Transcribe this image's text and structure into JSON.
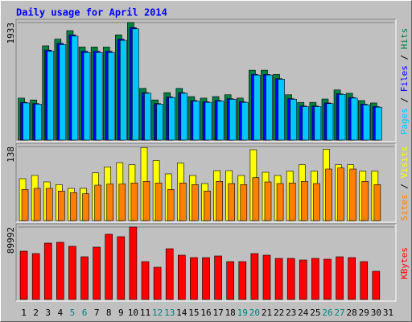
{
  "title": "Daily usage for April 2014",
  "chart_data": [
    {
      "type": "bar",
      "ylim": [
        0,
        1933
      ],
      "yticks": [
        1933
      ],
      "legend_separator": " / ",
      "series": [
        {
          "name": "Hits",
          "color": "#008040",
          "values": [
            690,
            660,
            1550,
            1660,
            1800,
            1530,
            1530,
            1530,
            1730,
            1933,
            850,
            660,
            780,
            850,
            715,
            690,
            715,
            745,
            690,
            1150,
            1150,
            1080,
            745,
            620,
            620,
            675,
            825,
            770,
            650,
            610,
            null
          ]
        },
        {
          "name": "Files",
          "color": "#0000ff",
          "values": [
            620,
            600,
            1480,
            1590,
            1730,
            1460,
            1460,
            1460,
            1660,
            1850,
            780,
            600,
            710,
            780,
            650,
            630,
            650,
            680,
            630,
            1080,
            1080,
            1010,
            680,
            560,
            560,
            610,
            760,
            700,
            590,
            550,
            null
          ]
        },
        {
          "name": "Pages",
          "color": "#00c8ff",
          "values": [
            610,
            590,
            1460,
            1570,
            1710,
            1440,
            1440,
            1440,
            1640,
            1830,
            770,
            590,
            700,
            770,
            640,
            620,
            640,
            670,
            620,
            1070,
            1070,
            1000,
            670,
            550,
            550,
            600,
            750,
            690,
            580,
            540,
            null
          ]
        }
      ]
    },
    {
      "type": "bar",
      "ylim": [
        0,
        138
      ],
      "yticks": [
        138
      ],
      "legend_separator": " / ",
      "series": [
        {
          "name": "Visits",
          "color": "#ffff00",
          "values": [
            78,
            84,
            72,
            67,
            60,
            60,
            89,
            100,
            108,
            104,
            136,
            112,
            87,
            107,
            84,
            69,
            93,
            93,
            84,
            132,
            90,
            84,
            92,
            104,
            92,
            133,
            104,
            104,
            92,
            92,
            null
          ]
        },
        {
          "name": "Sites",
          "color": "#ff8000",
          "values": [
            58,
            60,
            60,
            55,
            52,
            50,
            66,
            68,
            68,
            70,
            73,
            70,
            58,
            70,
            67,
            55,
            73,
            69,
            67,
            80,
            72,
            69,
            70,
            73,
            69,
            96,
            98,
            96,
            73,
            67,
            null
          ]
        }
      ]
    },
    {
      "type": "bar",
      "ylim": [
        0,
        89992
      ],
      "yticks": [
        89992
      ],
      "series": [
        {
          "name": "KBytes",
          "color": "#ff0000",
          "values": [
            60000,
            57000,
            70000,
            71000,
            66000,
            53000,
            65000,
            81000,
            78000,
            89992,
            47000,
            40000,
            63000,
            55000,
            52000,
            52000,
            54000,
            47000,
            47000,
            57000,
            55000,
            51000,
            51000,
            49000,
            51000,
            50000,
            53000,
            52000,
            47000,
            35000,
            null
          ]
        }
      ],
      "categories": [
        "1",
        "2",
        "3",
        "4",
        "5",
        "6",
        "7",
        "8",
        "9",
        "10",
        "11",
        "12",
        "13",
        "14",
        "15",
        "16",
        "17",
        "18",
        "19",
        "20",
        "21",
        "22",
        "23",
        "24",
        "25",
        "26",
        "27",
        "28",
        "29",
        "30",
        "31"
      ],
      "category_colors": [
        "#000000",
        "#000000",
        "#000000",
        "#000000",
        "#008080",
        "#008080",
        "#000000",
        "#000000",
        "#000000",
        "#000000",
        "#000000",
        "#008080",
        "#008080",
        "#000000",
        "#000000",
        "#000000",
        "#000000",
        "#000000",
        "#008080",
        "#008080",
        "#000000",
        "#000000",
        "#000000",
        "#000000",
        "#000000",
        "#008080",
        "#008080",
        "#000000",
        "#000000",
        "#000000",
        "#000000"
      ]
    }
  ]
}
